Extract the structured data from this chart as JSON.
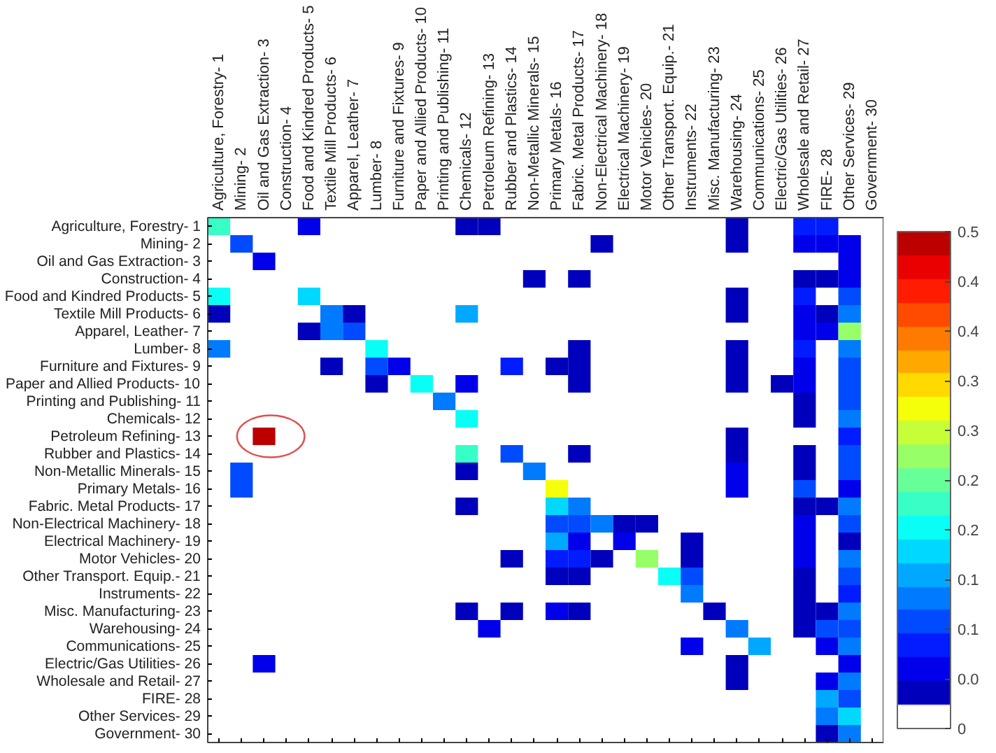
{
  "chart_data": {
    "type": "heatmap",
    "categories": [
      "Agriculture, Forestry- 1",
      "Mining- 2",
      "Oil and Gas Extraction- 3",
      "Construction- 4",
      "Food and Kindred Products- 5",
      "Textile Mill Products- 6",
      "Apparel, Leather- 7",
      "Lumber- 8",
      "Furniture and Fixtures- 9",
      "Paper and Allied Products- 10",
      "Printing and Publishing- 11",
      "Chemicals- 12",
      "Petroleum Refining- 13",
      "Rubber and Plastics- 14",
      "Non-Metallic Minerals- 15",
      "Primary Metals- 16",
      "Fabric. Metal Products- 17",
      "Non-Electrical Machinery- 18",
      "Electrical Machinery- 19",
      "Motor Vehicles- 20",
      "Other Transport. Equip.- 21",
      "Instruments- 22",
      "Misc. Manufacturing- 23",
      "Warehousing- 24",
      "Communications- 25",
      "Electric/Gas Utilities- 26",
      "Wholesale and Retail- 27",
      "FIRE- 28",
      "Other Services- 29",
      "Government- 30"
    ],
    "y_categories": [
      "Agriculture, Forestry- 1",
      "Mining- 2",
      "Oil and Gas Extraction- 3",
      "Construction- 4",
      "Food and Kindred Products- 5",
      "Textile Mill Products- 6",
      "Apparel, Leather- 7",
      "Lumber- 8",
      "Furniture and Fixtures- 9",
      "Paper and Allied Products- 10",
      "Printing and Publishing- 11",
      "Chemicals- 12",
      "Petroleum Refining- 13",
      "Rubber and Plastics- 14",
      "Non-Metallic Minerals- 15",
      "Primary Metals- 16",
      "Fabric. Metal Products- 17",
      "Non-Electrical Machinery- 18",
      "Electrical Machinery- 19",
      "Motor Vehicles- 20",
      "Other Transport. Equip.- 21",
      "Instruments- 22",
      "Misc. Manufacturing- 23",
      "Warehousing- 24",
      "Communications- 25",
      "Electric/Gas Utilities- 26",
      "Wholesale and Retail- 27",
      "FIRE- 28",
      "Other Services- 29",
      "Government- 30"
    ],
    "cells": [
      [
        0.23,
        null,
        null,
        null,
        0.06,
        null,
        null,
        null,
        null,
        null,
        null,
        0.04,
        0.04,
        null,
        null,
        null,
        null,
        null,
        null,
        null,
        null,
        null,
        null,
        0.04,
        null,
        null,
        0.09,
        0.09,
        null,
        null
      ],
      [
        null,
        0.11,
        null,
        null,
        null,
        null,
        null,
        null,
        null,
        null,
        null,
        null,
        null,
        null,
        null,
        null,
        null,
        0.04,
        null,
        null,
        null,
        null,
        null,
        0.04,
        null,
        null,
        0.05,
        0.05,
        0.07,
        null
      ],
      [
        null,
        null,
        0.07,
        null,
        null,
        null,
        null,
        null,
        null,
        null,
        null,
        null,
        null,
        null,
        null,
        null,
        null,
        null,
        null,
        null,
        null,
        null,
        null,
        null,
        null,
        null,
        null,
        null,
        0.07,
        null
      ],
      [
        null,
        null,
        null,
        null,
        null,
        null,
        null,
        null,
        null,
        null,
        null,
        null,
        null,
        null,
        0.04,
        null,
        0.04,
        null,
        null,
        null,
        null,
        null,
        null,
        null,
        null,
        null,
        0.04,
        0.04,
        0.07,
        null
      ],
      [
        0.2,
        null,
        null,
        null,
        0.18,
        null,
        null,
        null,
        null,
        null,
        null,
        null,
        null,
        null,
        null,
        null,
        null,
        null,
        null,
        null,
        null,
        null,
        null,
        0.04,
        null,
        null,
        0.09,
        null,
        0.11,
        null
      ],
      [
        0.04,
        null,
        null,
        null,
        null,
        0.14,
        0.04,
        null,
        null,
        null,
        null,
        0.15,
        null,
        null,
        null,
        null,
        null,
        null,
        null,
        null,
        null,
        null,
        null,
        0.04,
        null,
        null,
        0.07,
        0.04,
        0.14,
        null
      ],
      [
        null,
        null,
        null,
        null,
        0.04,
        0.14,
        0.11,
        null,
        null,
        null,
        null,
        null,
        null,
        null,
        null,
        null,
        null,
        null,
        null,
        null,
        null,
        null,
        null,
        null,
        null,
        null,
        0.07,
        0.07,
        0.28,
        null
      ],
      [
        0.14,
        null,
        null,
        null,
        null,
        null,
        null,
        0.2,
        null,
        null,
        null,
        null,
        null,
        null,
        null,
        null,
        0.04,
        null,
        null,
        null,
        null,
        null,
        null,
        0.04,
        null,
        null,
        0.08,
        null,
        0.13,
        null
      ],
      [
        null,
        null,
        null,
        null,
        null,
        0.04,
        null,
        0.11,
        0.05,
        null,
        null,
        null,
        null,
        0.09,
        null,
        0.04,
        0.04,
        null,
        null,
        null,
        null,
        null,
        null,
        0.04,
        null,
        null,
        0.07,
        null,
        0.11,
        null
      ],
      [
        null,
        null,
        null,
        null,
        null,
        null,
        null,
        0.04,
        null,
        0.2,
        null,
        0.06,
        null,
        null,
        null,
        null,
        0.04,
        null,
        null,
        null,
        null,
        null,
        null,
        0.04,
        null,
        0.04,
        0.07,
        null,
        0.11,
        null
      ],
      [
        null,
        null,
        null,
        null,
        null,
        null,
        null,
        null,
        null,
        null,
        0.14,
        null,
        null,
        null,
        null,
        null,
        null,
        null,
        null,
        null,
        null,
        null,
        null,
        null,
        null,
        null,
        0.04,
        null,
        0.11,
        null
      ],
      [
        null,
        null,
        null,
        null,
        null,
        null,
        null,
        null,
        null,
        null,
        null,
        0.2,
        null,
        null,
        null,
        null,
        null,
        null,
        null,
        null,
        null,
        null,
        null,
        null,
        null,
        null,
        0.04,
        null,
        0.13,
        null
      ],
      [
        null,
        null,
        0.49,
        null,
        null,
        null,
        null,
        null,
        null,
        null,
        null,
        null,
        null,
        null,
        null,
        null,
        null,
        null,
        null,
        null,
        null,
        null,
        null,
        0.04,
        null,
        null,
        null,
        null,
        0.08,
        null
      ],
      [
        null,
        null,
        null,
        null,
        null,
        null,
        null,
        null,
        null,
        null,
        null,
        0.23,
        null,
        0.11,
        null,
        null,
        0.04,
        null,
        null,
        null,
        null,
        null,
        null,
        0.04,
        null,
        null,
        0.04,
        null,
        0.11,
        null
      ],
      [
        null,
        0.11,
        null,
        null,
        null,
        null,
        null,
        null,
        null,
        null,
        null,
        0.04,
        null,
        null,
        0.13,
        null,
        null,
        null,
        null,
        null,
        null,
        null,
        null,
        0.07,
        null,
        null,
        0.04,
        null,
        0.1,
        null
      ],
      [
        null,
        0.11,
        null,
        null,
        null,
        null,
        null,
        null,
        null,
        null,
        null,
        null,
        null,
        null,
        null,
        0.31,
        null,
        null,
        null,
        null,
        null,
        null,
        null,
        0.07,
        null,
        null,
        0.11,
        null,
        0.07,
        null
      ],
      [
        null,
        null,
        null,
        null,
        null,
        null,
        null,
        null,
        null,
        null,
        null,
        0.04,
        null,
        null,
        null,
        0.18,
        0.12,
        null,
        null,
        null,
        null,
        null,
        null,
        null,
        null,
        null,
        0.04,
        0.04,
        0.12,
        null
      ],
      [
        null,
        null,
        null,
        null,
        null,
        null,
        null,
        null,
        null,
        null,
        null,
        null,
        null,
        null,
        null,
        0.11,
        0.11,
        0.13,
        0.04,
        0.04,
        null,
        null,
        null,
        null,
        null,
        null,
        0.07,
        null,
        0.11,
        null
      ],
      [
        null,
        null,
        null,
        null,
        null,
        null,
        null,
        null,
        null,
        null,
        null,
        null,
        null,
        null,
        null,
        0.15,
        0.07,
        null,
        0.07,
        null,
        null,
        0.04,
        null,
        null,
        null,
        null,
        0.07,
        null,
        0.04,
        null
      ],
      [
        null,
        null,
        null,
        null,
        null,
        null,
        null,
        null,
        null,
        null,
        null,
        null,
        null,
        0.04,
        null,
        0.08,
        0.08,
        0.04,
        null,
        0.28,
        null,
        0.04,
        null,
        null,
        null,
        null,
        0.07,
        null,
        0.12,
        null
      ],
      [
        null,
        null,
        null,
        null,
        null,
        null,
        null,
        null,
        null,
        null,
        null,
        null,
        null,
        null,
        null,
        0.04,
        0.04,
        null,
        null,
        null,
        0.2,
        0.11,
        null,
        null,
        null,
        null,
        0.04,
        null,
        0.11,
        null
      ],
      [
        null,
        null,
        null,
        null,
        null,
        null,
        null,
        null,
        null,
        null,
        null,
        null,
        null,
        null,
        null,
        null,
        null,
        null,
        null,
        null,
        null,
        0.12,
        null,
        null,
        null,
        null,
        0.04,
        null,
        0.08,
        null
      ],
      [
        null,
        null,
        null,
        null,
        null,
        null,
        null,
        null,
        null,
        null,
        null,
        0.04,
        null,
        0.04,
        null,
        0.07,
        0.04,
        null,
        null,
        null,
        null,
        null,
        0.04,
        null,
        null,
        null,
        0.04,
        0.04,
        0.12,
        null
      ],
      [
        null,
        null,
        null,
        null,
        null,
        null,
        null,
        null,
        null,
        null,
        null,
        null,
        0.07,
        null,
        null,
        null,
        null,
        null,
        null,
        null,
        null,
        null,
        null,
        0.14,
        null,
        null,
        0.04,
        0.1,
        0.11,
        null
      ],
      [
        null,
        null,
        null,
        null,
        null,
        null,
        null,
        null,
        null,
        null,
        null,
        null,
        null,
        null,
        null,
        null,
        null,
        null,
        null,
        null,
        null,
        0.07,
        null,
        null,
        0.15,
        null,
        null,
        0.07,
        0.14,
        null
      ],
      [
        null,
        null,
        0.07,
        null,
        null,
        null,
        null,
        null,
        null,
        null,
        null,
        null,
        null,
        null,
        null,
        null,
        null,
        null,
        null,
        null,
        null,
        null,
        null,
        0.04,
        null,
        null,
        null,
        null,
        0.07,
        null
      ],
      [
        null,
        null,
        null,
        null,
        null,
        null,
        null,
        null,
        null,
        null,
        null,
        null,
        null,
        null,
        null,
        null,
        null,
        null,
        null,
        null,
        null,
        null,
        null,
        0.04,
        null,
        null,
        null,
        0.07,
        0.14,
        null
      ],
      [
        null,
        null,
        null,
        null,
        null,
        null,
        null,
        null,
        null,
        null,
        null,
        null,
        null,
        null,
        null,
        null,
        null,
        null,
        null,
        null,
        null,
        null,
        null,
        null,
        null,
        null,
        null,
        0.15,
        0.11,
        null
      ],
      [
        null,
        null,
        null,
        null,
        null,
        null,
        null,
        null,
        null,
        null,
        null,
        null,
        null,
        null,
        null,
        null,
        null,
        null,
        null,
        null,
        null,
        null,
        null,
        null,
        null,
        null,
        null,
        0.12,
        0.18,
        null
      ],
      [
        null,
        null,
        null,
        null,
        null,
        null,
        null,
        null,
        null,
        null,
        null,
        null,
        null,
        null,
        null,
        null,
        null,
        null,
        null,
        null,
        null,
        null,
        null,
        null,
        null,
        null,
        null,
        0.04,
        0.12,
        null
      ]
    ],
    "clim": [
      0,
      0.5
    ],
    "cticks": [
      0,
      {
        "value": 0.05,
        "label": "0.0"
      },
      0.1,
      {
        "value": 0.15,
        "label": "0.1"
      },
      0.2,
      {
        "value": 0.25,
        "label": "0.2"
      },
      0.3,
      {
        "value": 0.35,
        "label": "0.3"
      },
      0.4,
      {
        "value": 0.45,
        "label": "0.4"
      },
      0.5
    ]
  }
}
